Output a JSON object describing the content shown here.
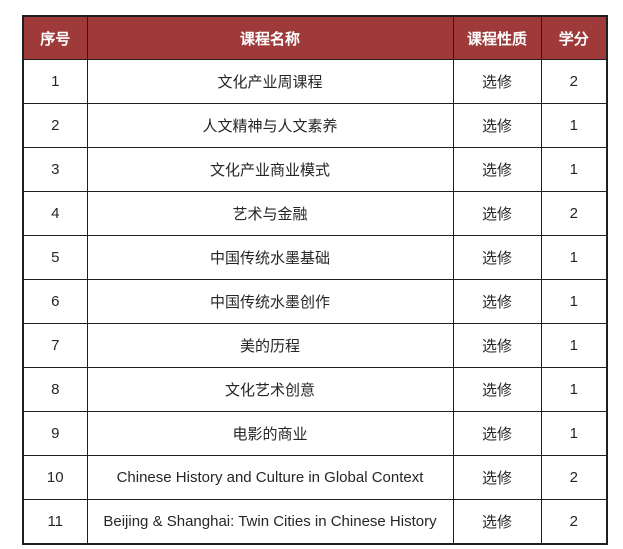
{
  "table": {
    "headers": [
      "序号",
      "课程名称",
      "课程性质",
      "学分"
    ],
    "rows": [
      [
        "1",
        "文化产业周课程",
        "选修",
        "2"
      ],
      [
        "2",
        "人文精神与人文素养",
        "选修",
        "1"
      ],
      [
        "3",
        "文化产业商业模式",
        "选修",
        "1"
      ],
      [
        "4",
        "艺术与金融",
        "选修",
        "2"
      ],
      [
        "5",
        "中国传统水墨基础",
        "选修",
        "1"
      ],
      [
        "6",
        "中国传统水墨创作",
        "选修",
        "1"
      ],
      [
        "7",
        "美的历程",
        "选修",
        "1"
      ],
      [
        "8",
        "文化艺术创意",
        "选修",
        "1"
      ],
      [
        "9",
        "电影的商业",
        "选修",
        "1"
      ],
      [
        "10",
        "Chinese History and Culture in Global Context",
        "选修",
        "2"
      ],
      [
        "11",
        "Beijing & Shanghai: Twin Cities in Chinese History",
        "选修",
        "2"
      ]
    ]
  },
  "colors": {
    "header_bg": "#9e3b3a",
    "header_text": "#ffffff",
    "border": "#1f1f1f",
    "body_text": "#262626"
  }
}
